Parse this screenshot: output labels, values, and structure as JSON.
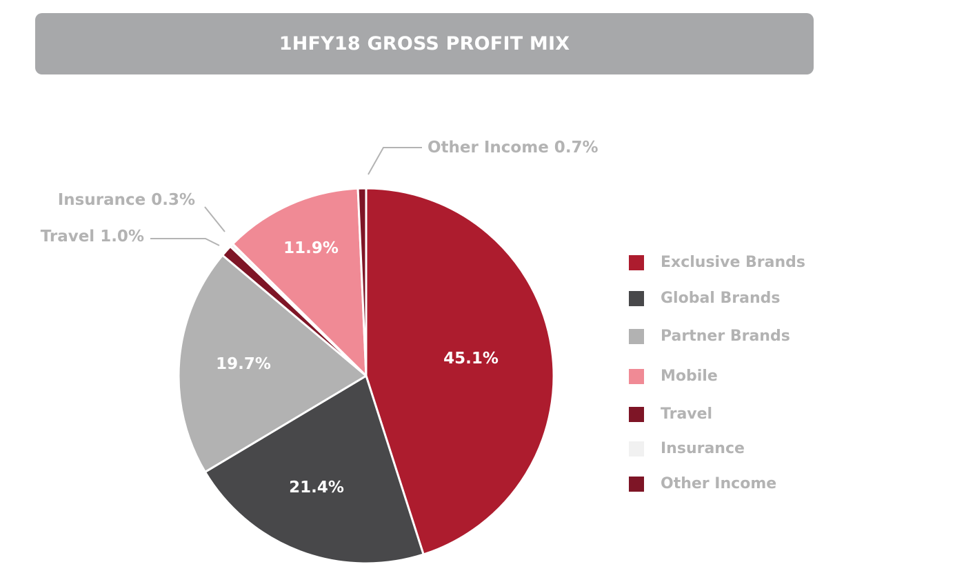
{
  "chart_data": {
    "type": "pie",
    "title": "1HFY18 GROSS PROFIT MIX",
    "categories": [
      "Exclusive Brands",
      "Global Brands",
      "Partner Brands",
      "Mobile",
      "Travel",
      "Insurance",
      "Other Income"
    ],
    "values": [
      45.1,
      21.4,
      19.7,
      11.9,
      1.0,
      0.3,
      0.7
    ],
    "unit": "%",
    "slices": [
      {
        "name": "Exclusive Brands",
        "value": 45.1,
        "label": "45.1%",
        "color": "#ad1c2e"
      },
      {
        "name": "Global Brands",
        "value": 21.4,
        "label": "21.4%",
        "color": "#48484a"
      },
      {
        "name": "Partner Brands",
        "value": 19.7,
        "label": "19.7%",
        "color": "#b2b2b2"
      },
      {
        "name": "Travel",
        "value": 1.0,
        "label": "Travel 1.0%",
        "color": "#7e1526"
      },
      {
        "name": "Insurance",
        "value": 0.3,
        "label": "Insurance 0.3%",
        "color": "#f1f1f1"
      },
      {
        "name": "Mobile",
        "value": 11.9,
        "label": "11.9%",
        "color": "#f08a95"
      },
      {
        "name": "Other Income",
        "value": 0.7,
        "label": "Other Income 0.7%",
        "color": "#7e1526"
      }
    ],
    "legend": {
      "position": "right",
      "items": [
        {
          "label": "Exclusive Brands",
          "color": "#ad1c2e"
        },
        {
          "label": "Global Brands",
          "color": "#48484a"
        },
        {
          "label": "Partner Brands",
          "color": "#b2b2b2"
        },
        {
          "label": "Mobile",
          "color": "#f08a95"
        },
        {
          "label": "Travel",
          "color": "#7e1526"
        },
        {
          "label": "Insurance",
          "color": "#f1f1f1"
        },
        {
          "label": "Other Income",
          "color": "#7e1526"
        }
      ]
    }
  }
}
